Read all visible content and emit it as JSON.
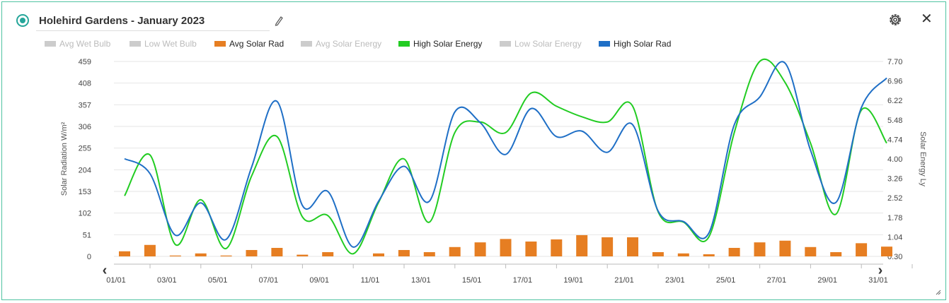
{
  "header": {
    "title": "Holehird Gardens - January 2023"
  },
  "icons": [
    "status-dot",
    "edit-icon",
    "settings-icon",
    "close-icon",
    "chevron-left-icon",
    "chevron-right-icon",
    "resize-handle-icon"
  ],
  "legend": [
    {
      "label": "Avg Wet Bulb",
      "color": "#cccccc",
      "active": false
    },
    {
      "label": "Low Wet Bulb",
      "color": "#cccccc",
      "active": false
    },
    {
      "label": "Avg Solar Rad",
      "color": "#e67e22",
      "active": true
    },
    {
      "label": "Avg Solar Energy",
      "color": "#cccccc",
      "active": false
    },
    {
      "label": "High Solar Energy",
      "color": "#22cc22",
      "active": true
    },
    {
      "label": "Low Solar Energy",
      "color": "#cccccc",
      "active": false
    },
    {
      "label": "High Solar Rad",
      "color": "#1f6fc6",
      "active": true
    }
  ],
  "nav": {
    "prev": "‹",
    "next": "›"
  },
  "chart_data": {
    "type": "bar",
    "ylabel_left": "Solar Radiation W/m²",
    "ylabel_right": "Solar Energy Ly",
    "yticks_left": [
      "459",
      "408",
      "357",
      "306",
      "255",
      "204",
      "153",
      "102",
      "51",
      "0"
    ],
    "yticks_right": [
      "7.70",
      "6.96",
      "6.22",
      "5.48",
      "4.74",
      "4.00",
      "3.26",
      "2.52",
      "1.78",
      "1.04",
      "0.30"
    ],
    "xticks": [
      "01/01",
      "03/01",
      "05/01",
      "07/01",
      "09/01",
      "11/01",
      "13/01",
      "15/01",
      "17/01",
      "19/01",
      "21/01",
      "23/01",
      "25/01",
      "27/01",
      "29/01",
      "31/01"
    ],
    "ylim_left": [
      0,
      459
    ],
    "ylim_right": [
      0.3,
      7.7
    ],
    "days": [
      "01/01",
      "02/01",
      "03/01",
      "04/01",
      "05/01",
      "06/01",
      "07/01",
      "08/01",
      "09/01",
      "10/01",
      "11/01",
      "12/01",
      "13/01",
      "14/01",
      "15/01",
      "16/01",
      "17/01",
      "18/01",
      "19/01",
      "20/01",
      "21/01",
      "22/01",
      "23/01",
      "24/01",
      "25/01",
      "26/01",
      "27/01",
      "28/01",
      "29/01",
      "30/01",
      "31/01"
    ],
    "series": [
      {
        "name": "Avg Solar Rad",
        "kind": "bar",
        "axis": "left",
        "color": "#e67e22",
        "values": [
          12,
          27,
          2,
          7,
          2,
          15,
          20,
          4,
          10,
          0,
          7,
          15,
          10,
          22,
          33,
          41,
          35,
          40,
          50,
          45,
          45,
          10,
          7,
          5,
          20,
          33,
          37,
          22,
          10,
          31,
          23
        ]
      },
      {
        "name": "High Solar Rad",
        "kind": "line",
        "axis": "left",
        "color": "#1f6fc6",
        "values": [
          230,
          195,
          50,
          126,
          40,
          210,
          365,
          120,
          153,
          22,
          130,
          212,
          130,
          340,
          315,
          240,
          348,
          282,
          295,
          245,
          310,
          107,
          82,
          55,
          310,
          375,
          455,
          250,
          127,
          350,
          420
        ]
      },
      {
        "name": "High Solar Energy",
        "kind": "line",
        "axis": "right",
        "color": "#22cc22",
        "values": [
          2.6,
          4.15,
          0.75,
          2.45,
          0.6,
          3.35,
          4.85,
          1.8,
          1.85,
          0.4,
          2.35,
          4.0,
          1.6,
          5.0,
          5.4,
          5.0,
          6.5,
          6.0,
          5.6,
          5.4,
          6.0,
          2.0,
          1.6,
          1.04,
          5.0,
          7.7,
          6.9,
          4.6,
          1.9,
          5.85,
          4.6
        ]
      }
    ]
  }
}
